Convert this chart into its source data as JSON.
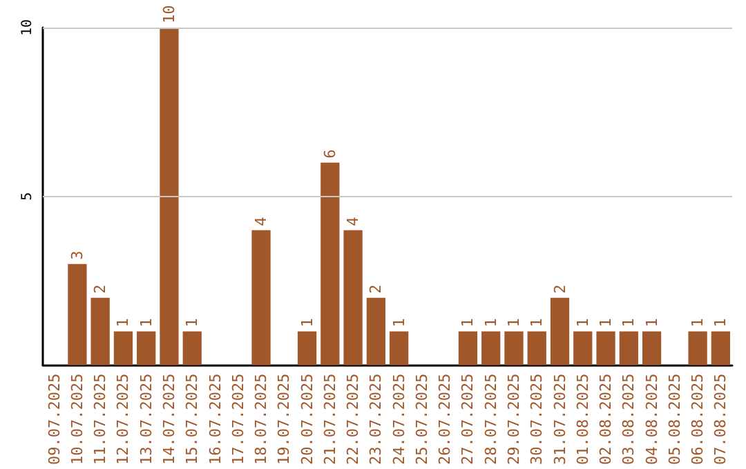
{
  "chart_data": {
    "type": "bar",
    "categories": [
      "09.07.2025",
      "10.07.2025",
      "11.07.2025",
      "12.07.2025",
      "13.07.2025",
      "14.07.2025",
      "15.07.2025",
      "16.07.2025",
      "17.07.2025",
      "18.07.2025",
      "19.07.2025",
      "20.07.2025",
      "21.07.2025",
      "22.07.2025",
      "23.07.2025",
      "24.07.2025",
      "25.07.2025",
      "26.07.2025",
      "27.07.2025",
      "28.07.2025",
      "29.07.2025",
      "30.07.2025",
      "31.07.2025",
      "01.08.2025",
      "02.08.2025",
      "03.08.2025",
      "04.08.2025",
      "05.08.2025",
      "06.08.2025",
      "07.08.2025"
    ],
    "values": [
      0,
      3,
      2,
      1,
      1,
      10,
      1,
      0,
      0,
      4,
      0,
      1,
      6,
      4,
      2,
      1,
      0,
      0,
      1,
      1,
      1,
      1,
      2,
      1,
      1,
      1,
      1,
      0,
      1,
      1
    ],
    "value_labels": [
      null,
      "3",
      "2",
      "1",
      "1",
      "10",
      "1",
      null,
      null,
      "4",
      null,
      "1",
      "6",
      "4",
      "2",
      "1",
      null,
      null,
      "1",
      "1",
      "1",
      "1",
      "2",
      "1",
      "1",
      "1",
      "1",
      null,
      "1",
      "1"
    ],
    "color": "#a0582a",
    "ylim": [
      0,
      10
    ],
    "yticks": [
      5,
      10
    ],
    "grid": "y",
    "legend": false
  }
}
